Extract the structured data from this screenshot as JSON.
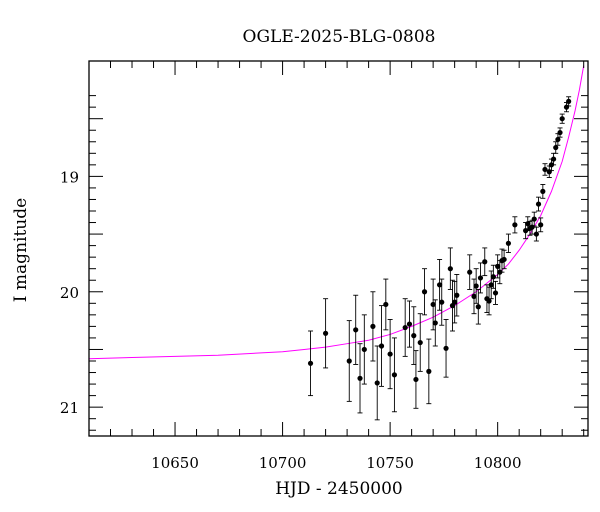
{
  "chart_data": {
    "type": "scatter",
    "title": "OGLE-2025-BLG-0808",
    "xlabel": "HJD - 2450000",
    "ylabel": "I magnitude",
    "xlim": [
      10610,
      10842
    ],
    "ylim": [
      21.25,
      18.0
    ],
    "y_inverted": true,
    "grid": false,
    "x_major_ticks": [
      10650,
      10700,
      10750,
      10800
    ],
    "x_tick_labels": [
      "10650",
      "10700",
      "10750",
      "10800"
    ],
    "y_major_ticks": [
      19,
      20,
      21
    ],
    "y_tick_labels": [
      "19",
      "20",
      "21"
    ],
    "model_color": "#ff00ff",
    "point_color": "#000000",
    "model": {
      "name": "",
      "x": [
        10610,
        10630,
        10650,
        10670,
        10690,
        10700,
        10710,
        10720,
        10730,
        10740,
        10750,
        10760,
        10770,
        10780,
        10790,
        10800,
        10805,
        10810,
        10815,
        10820,
        10825,
        10830,
        10833,
        10836,
        10838,
        10840
      ],
      "y": [
        20.58,
        20.57,
        20.56,
        20.55,
        20.53,
        20.52,
        20.5,
        20.48,
        20.45,
        20.42,
        20.37,
        20.3,
        20.22,
        20.12,
        20.0,
        19.85,
        19.76,
        19.64,
        19.5,
        19.34,
        19.13,
        18.87,
        18.66,
        18.43,
        18.25,
        18.04
      ]
    },
    "series": [
      {
        "name": "",
        "x": [
          10713,
          10720,
          10731,
          10734,
          10736,
          10738,
          10742,
          10744,
          10746,
          10748,
          10750,
          10752,
          10757,
          10759,
          10761,
          10762,
          10764,
          10766,
          10768,
          10770,
          10771,
          10773,
          10774,
          10776,
          10778,
          10779,
          10780,
          10781,
          10787,
          10789,
          10790,
          10791,
          10792,
          10794,
          10795,
          10796,
          10797,
          10798,
          10799,
          10800,
          10801,
          10802,
          10803,
          10805,
          10808,
          10813,
          10814,
          10815,
          10816,
          10817,
          10818,
          10819,
          10820,
          10821,
          10822,
          10824,
          10825,
          10826,
          10827,
          10828,
          10829,
          10830,
          10832,
          10833
        ],
        "y": [
          20.62,
          20.36,
          20.6,
          20.33,
          20.75,
          20.5,
          20.3,
          20.79,
          20.47,
          20.11,
          20.54,
          20.72,
          20.31,
          20.28,
          20.38,
          20.76,
          20.44,
          20.0,
          20.69,
          20.11,
          20.27,
          19.94,
          20.09,
          20.49,
          19.8,
          20.12,
          20.09,
          20.03,
          19.83,
          20.04,
          19.95,
          20.13,
          19.88,
          19.74,
          20.06,
          20.08,
          19.94,
          19.87,
          20.01,
          19.78,
          19.83,
          19.73,
          19.72,
          19.58,
          19.42,
          19.47,
          19.41,
          19.45,
          19.44,
          19.37,
          19.5,
          19.24,
          19.42,
          19.13,
          18.94,
          18.96,
          18.9,
          18.85,
          18.75,
          18.68,
          18.62,
          18.5,
          18.4,
          18.35
        ],
        "err": [
          0.28,
          0.3,
          0.35,
          0.3,
          0.3,
          0.3,
          0.3,
          0.32,
          0.35,
          0.22,
          0.3,
          0.32,
          0.25,
          0.2,
          0.25,
          0.25,
          0.25,
          0.2,
          0.28,
          0.22,
          0.2,
          0.22,
          0.2,
          0.25,
          0.18,
          0.22,
          0.18,
          0.18,
          0.15,
          0.15,
          0.15,
          0.15,
          0.13,
          0.12,
          0.12,
          0.12,
          0.12,
          0.1,
          0.1,
          0.1,
          0.1,
          0.1,
          0.08,
          0.08,
          0.07,
          0.07,
          0.06,
          0.06,
          0.06,
          0.06,
          0.06,
          0.06,
          0.06,
          0.06,
          0.05,
          0.05,
          0.05,
          0.05,
          0.05,
          0.05,
          0.04,
          0.04,
          0.04,
          0.04
        ]
      }
    ]
  }
}
